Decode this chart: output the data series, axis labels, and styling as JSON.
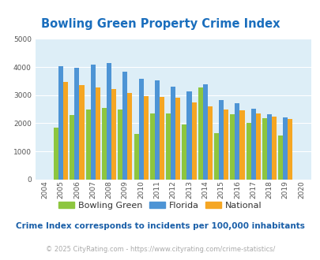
{
  "title": "Bowling Green Property Crime Index",
  "title_color": "#1a6ebd",
  "years": [
    2004,
    2005,
    2006,
    2007,
    2008,
    2009,
    2010,
    2011,
    2012,
    2013,
    2014,
    2015,
    2016,
    2017,
    2018,
    2019,
    2020
  ],
  "bowling_green": [
    0,
    1850,
    2300,
    2500,
    2550,
    2480,
    1620,
    2350,
    2350,
    1960,
    3280,
    1640,
    2320,
    2020,
    2180,
    1570,
    0
  ],
  "florida": [
    0,
    4020,
    3980,
    4100,
    4150,
    3840,
    3580,
    3530,
    3300,
    3130,
    3380,
    2820,
    2700,
    2520,
    2310,
    2220,
    0
  ],
  "national": [
    0,
    3460,
    3360,
    3270,
    3230,
    3070,
    2960,
    2950,
    2900,
    2750,
    2600,
    2500,
    2460,
    2360,
    2240,
    2160,
    0
  ],
  "bowling_green_color": "#8dc63f",
  "florida_color": "#4d94d5",
  "national_color": "#f5a623",
  "bg_color": "#ddeef7",
  "ylim": [
    0,
    5000
  ],
  "yticks": [
    0,
    1000,
    2000,
    3000,
    4000,
    5000
  ],
  "legend_labels": [
    "Bowling Green",
    "Florida",
    "National"
  ],
  "note": "Crime Index corresponds to incidents per 100,000 inhabitants",
  "note_color": "#1a5fa8",
  "copyright": "© 2025 CityRating.com - https://www.cityrating.com/crime-statistics/",
  "copyright_color": "#aaaaaa",
  "grid_color": "#ffffff"
}
